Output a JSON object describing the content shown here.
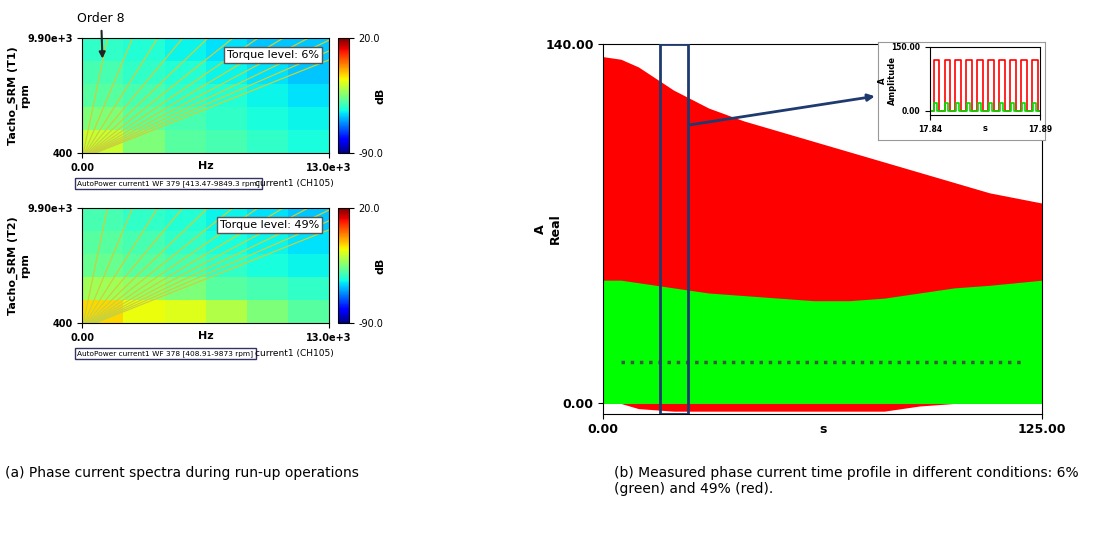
{
  "chart_data": [
    {
      "type": "heatmap",
      "annotation": "Torque level: 6%",
      "info": "AutoPower current1 WF 379 [413.47-9849.3 rpm]",
      "xlabel": "Hz",
      "channel": "current1 (CH105)",
      "ylabel": "Tacho_SRM (T1)\nrpm",
      "xlim": [
        0,
        13000
      ],
      "ylim": [
        400,
        9900
      ],
      "xticks": [
        {
          "value": 0,
          "label": "0.00"
        },
        {
          "value": 13000,
          "label": "13.0e+3"
        }
      ],
      "yticks": [
        400,
        {
          "value": 9900,
          "label": "9.90e+3"
        }
      ],
      "x_edges": [
        0,
        2167,
        4333,
        6500,
        8667,
        10833,
        13000
      ],
      "y_edges": [
        400,
        2300,
        4200,
        6100,
        8000,
        9900
      ],
      "cells": [
        [
          -25,
          -35,
          -40,
          -42,
          -45,
          -48
        ],
        [
          -35,
          -40,
          -42,
          -45,
          -48,
          -50
        ],
        [
          -40,
          -42,
          -45,
          -47,
          -50,
          -52
        ],
        [
          -42,
          -45,
          -47,
          -50,
          -52,
          -55
        ],
        [
          -45,
          -47,
          -50,
          -52,
          -55,
          -55
        ]
      ],
      "colorbar_label": "dB",
      "colorbar_range": [
        -90,
        20
      ],
      "colorbar_ticks": [
        {
          "value": 20,
          "label": "20.0"
        },
        {
          "value": -90,
          "label": "-90.0"
        }
      ],
      "series": [
        {
          "label": "Order 8",
          "color": "#c8d23c",
          "x": [
            53,
            1320
          ],
          "values": [
            400,
            9900
          ]
        },
        {
          "color": "#c8d23c",
          "x": [
            107,
            2640
          ],
          "values": [
            400,
            9900
          ]
        },
        {
          "color": "#c8d23c",
          "x": [
            160,
            3960
          ],
          "values": [
            400,
            9900
          ]
        },
        {
          "color": "#c8d23c",
          "x": [
            213,
            5280
          ],
          "values": [
            400,
            9900
          ]
        },
        {
          "color": "#c8d23c",
          "x": [
            267,
            6600
          ],
          "values": [
            400,
            9900
          ]
        },
        {
          "color": "#c8d23c",
          "x": [
            320,
            7920
          ],
          "values": [
            400,
            9900
          ]
        },
        {
          "color": "#c8d23c",
          "x": [
            373,
            9240
          ],
          "values": [
            400,
            9900
          ]
        },
        {
          "color": "#c8d23c",
          "x": [
            427,
            10560
          ],
          "values": [
            400,
            9900
          ]
        },
        {
          "color": "#c8d23c",
          "x": [
            480,
            11880
          ],
          "values": [
            400,
            9900
          ]
        },
        {
          "color": "#c8d23c",
          "x": [
            533,
            13200
          ],
          "values": [
            400,
            9900
          ]
        },
        {
          "color": "#c8d23c",
          "x": [
            587,
            14520
          ],
          "values": [
            400,
            9900
          ]
        },
        {
          "color": "#c8d23c",
          "x": [
            640,
            15840
          ],
          "values": [
            400,
            9900
          ]
        }
      ]
    },
    {
      "type": "heatmap",
      "annotation": "Torque level: 49%",
      "info": "AutoPower current1 WF 378 [408.91-9873 rpm]",
      "xlabel": "Hz",
      "channel": "current1 (CH105)",
      "ylabel": "Tacho_SRM (T2)\nrpm",
      "xlim": [
        0,
        13000
      ],
      "ylim": [
        400,
        9900
      ],
      "xticks": [
        {
          "value": 0,
          "label": "0.00"
        },
        {
          "value": 13000,
          "label": "13.0e+3"
        }
      ],
      "yticks": [
        400,
        {
          "value": 9900,
          "label": "9.90e+3"
        }
      ],
      "x_edges": [
        0,
        2167,
        4333,
        6500,
        8667,
        10833,
        13000
      ],
      "y_edges": [
        400,
        2300,
        4200,
        6100,
        8000,
        9900
      ],
      "cells": [
        [
          -15,
          -20,
          -22,
          -28,
          -35,
          -40
        ],
        [
          -30,
          -32,
          -35,
          -40,
          -42,
          -45
        ],
        [
          -38,
          -40,
          -42,
          -45,
          -48,
          -50
        ],
        [
          -40,
          -42,
          -45,
          -48,
          -50,
          -52
        ],
        [
          -42,
          -45,
          -47,
          -50,
          -52,
          -55
        ]
      ],
      "colorbar_label": "dB",
      "colorbar_range": [
        -90,
        20
      ],
      "colorbar_ticks": [
        {
          "value": 20,
          "label": "20.0"
        },
        {
          "value": -90,
          "label": "-90.0"
        }
      ],
      "series": [
        {
          "color": "#c8d23c",
          "x": [
            53,
            1320
          ],
          "values": [
            400,
            9900
          ]
        },
        {
          "color": "#c8d23c",
          "x": [
            107,
            2640
          ],
          "values": [
            400,
            9900
          ]
        },
        {
          "color": "#c8d23c",
          "x": [
            160,
            3960
          ],
          "values": [
            400,
            9900
          ]
        },
        {
          "color": "#c8d23c",
          "x": [
            213,
            5280
          ],
          "values": [
            400,
            9900
          ]
        },
        {
          "color": "#c8d23c",
          "x": [
            267,
            6600
          ],
          "values": [
            400,
            9900
          ]
        },
        {
          "color": "#c8d23c",
          "x": [
            320,
            7920
          ],
          "values": [
            400,
            9900
          ]
        },
        {
          "color": "#c8d23c",
          "x": [
            373,
            9240
          ],
          "values": [
            400,
            9900
          ]
        },
        {
          "color": "#c8d23c",
          "x": [
            427,
            10560
          ],
          "values": [
            400,
            9900
          ]
        },
        {
          "color": "#c8d23c",
          "x": [
            480,
            11880
          ],
          "values": [
            400,
            9900
          ]
        },
        {
          "color": "#c8d23c",
          "x": [
            533,
            13200
          ],
          "values": [
            400,
            9900
          ]
        },
        {
          "color": "#c8d23c",
          "x": [
            587,
            14520
          ],
          "values": [
            400,
            9900
          ]
        },
        {
          "color": "#c8d23c",
          "x": [
            640,
            15840
          ],
          "values": [
            400,
            9900
          ]
        }
      ]
    },
    {
      "type": "area",
      "xlabel": "s",
      "ylabel": "A\nReal",
      "xlim": [
        0,
        125
      ],
      "ylim": [
        -4,
        140
      ],
      "xticks": [
        {
          "value": 0,
          "label": "0.00"
        },
        {
          "value": 125,
          "label": "125.00"
        }
      ],
      "yticks": [
        {
          "value": 0,
          "label": "0.00"
        },
        {
          "value": 140,
          "label": "140.00"
        }
      ],
      "highlight_x": [
        16,
        24
      ],
      "series": [
        {
          "color": "#ff0000",
          "x": [
            0,
            5,
            10,
            20,
            30,
            40,
            50,
            60,
            70,
            80,
            90,
            100,
            110,
            125
          ],
          "values": [
            135,
            134,
            131,
            122,
            115,
            110,
            106,
            102,
            98,
            94,
            90,
            86,
            82,
            78
          ],
          "lower": [
            0,
            0,
            -2,
            -3,
            -3,
            -3,
            -3,
            -3,
            -3,
            -3,
            -1,
            0,
            0,
            0
          ]
        },
        {
          "color": "#00ff00",
          "x": [
            0,
            5,
            10,
            20,
            30,
            40,
            50,
            60,
            70,
            80,
            90,
            100,
            110,
            125
          ],
          "values": [
            48,
            48,
            47,
            45,
            43,
            42,
            41,
            40,
            40,
            41,
            43,
            45,
            46,
            48
          ],
          "lower": [
            0,
            0,
            0,
            0,
            0,
            0,
            0,
            0,
            0,
            0,
            0,
            0,
            0,
            0
          ]
        },
        {
          "type": "line",
          "line_style": "dotted",
          "color": "#3a5a3a",
          "x": [
            5,
            15,
            25,
            35,
            45,
            55,
            65,
            75,
            85,
            95,
            105,
            115,
            120
          ],
          "values": [
            16,
            16,
            16,
            16,
            16,
            16,
            16,
            16,
            16,
            16,
            16,
            16,
            16
          ]
        }
      ],
      "inset": {
        "type": "line",
        "xlabel": "s",
        "ylabel": "A\nAmplitude",
        "xlim": [
          17.84,
          17.89
        ],
        "ylim": [
          -10,
          150
        ],
        "xticks": [
          17.84,
          17.89
        ],
        "yticks": [
          {
            "value": 0,
            "label": "0.00"
          },
          {
            "value": 150,
            "label": "150.00"
          }
        ],
        "series": [
          {
            "color": "#ff0000",
            "line_style": "steps",
            "x": [
              17.84,
              17.8415,
              17.844,
              17.8465,
              17.849,
              17.8515,
              17.854,
              17.8565,
              17.859,
              17.8615,
              17.864,
              17.8665,
              17.869,
              17.8715,
              17.874,
              17.8765,
              17.879,
              17.8815,
              17.884,
              17.8865,
              17.889,
              17.89
            ],
            "values": [
              0,
              118,
              0,
              118,
              0,
              118,
              0,
              118,
              0,
              118,
              0,
              118,
              0,
              118,
              0,
              118,
              0,
              118,
              0,
              118,
              0,
              0
            ]
          },
          {
            "color": "#00dd00",
            "line_style": "steps",
            "x": [
              17.84,
              17.8418,
              17.8432,
              17.8468,
              17.8482,
              17.8518,
              17.8532,
              17.8568,
              17.8582,
              17.8618,
              17.8632,
              17.8668,
              17.8682,
              17.8718,
              17.8732,
              17.8768,
              17.8782,
              17.8818,
              17.8832,
              17.8868,
              17.8882,
              17.89
            ],
            "values": [
              0,
              18,
              0,
              18,
              0,
              18,
              0,
              18,
              0,
              18,
              0,
              18,
              0,
              18,
              0,
              18,
              0,
              18,
              0,
              18,
              0,
              0
            ]
          }
        ]
      }
    }
  ],
  "captions": [
    "(a) Phase current spectra during run-up operations",
    "(b) Measured phase current time profile in different conditions: 6% (green) and 49% (red)."
  ]
}
